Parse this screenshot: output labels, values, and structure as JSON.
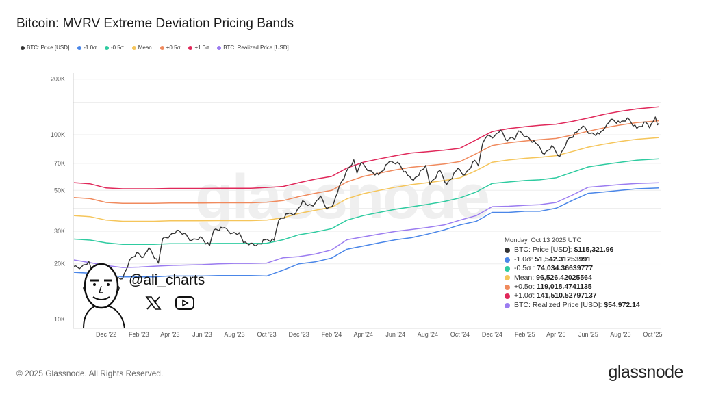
{
  "title": "Bitcoin: MVRV Extreme Deviation Pricing Bands",
  "legend": [
    {
      "label": "BTC: Price [USD]",
      "color": "#333333"
    },
    {
      "label": "-1.0σ",
      "color": "#4a86e8"
    },
    {
      "label": "-0.5σ",
      "color": "#2ecba0"
    },
    {
      "label": "Mean",
      "color": "#f5c55a"
    },
    {
      "label": "+0.5σ",
      "color": "#f08a5d"
    },
    {
      "label": "+1.0σ",
      "color": "#e0285a"
    },
    {
      "label": "BTC: Realized Price [USD]",
      "color": "#9b7cf0"
    }
  ],
  "tooltip": {
    "date": "Monday, Oct 13 2025 UTC",
    "rows": [
      {
        "label": "BTC: Price [USD]: ",
        "value": "$115,321.96",
        "color": "#333333"
      },
      {
        "label": "-1.0σ: ",
        "value": "51,542.31253991",
        "color": "#4a86e8"
      },
      {
        "label": "-0.5σ : ",
        "value": "74,034.36639777",
        "color": "#2ecba0"
      },
      {
        "label": "Mean: ",
        "value": "96,526.42025564",
        "color": "#f5c55a"
      },
      {
        "label": "+0.5σ: ",
        "value": "119,018.4741135",
        "color": "#f08a5d"
      },
      {
        "label": "+1.0σ: ",
        "value": "141,510.52797137",
        "color": "#e0285a"
      },
      {
        "label": "BTC: Realized Price [USD]: ",
        "value": "$54,972.14",
        "color": "#9b7cf0"
      }
    ]
  },
  "watermark": "glassnode",
  "author": {
    "handle": "@ali_charts",
    "icons": [
      "x-logo-icon",
      "youtube-icon"
    ]
  },
  "footer": "© 2025 Glassnode. All Rights Reserved.",
  "logo": "glassnode",
  "chart_data": {
    "type": "line",
    "title": "Bitcoin: MVRV Extreme Deviation Pricing Bands",
    "yscale": "log",
    "ylim": [
      10000,
      200000
    ],
    "yticks": [
      {
        "v": 200000,
        "label": "200K"
      },
      {
        "v": 100000,
        "label": "100K"
      },
      {
        "v": 70000,
        "label": "70K"
      },
      {
        "v": 50000,
        "label": "50K"
      },
      {
        "v": 30000,
        "label": "30K"
      },
      {
        "v": 20000,
        "label": "20K"
      },
      {
        "v": 10000,
        "label": "10K"
      }
    ],
    "xlim": [
      "2022-10-01",
      "2025-10-13"
    ],
    "xticks": [
      {
        "d": "2022-12-01",
        "label": "Dec '22"
      },
      {
        "d": "2023-02-01",
        "label": "Feb '23"
      },
      {
        "d": "2023-04-01",
        "label": "Apr '23"
      },
      {
        "d": "2023-06-01",
        "label": "Jun '23"
      },
      {
        "d": "2023-08-01",
        "label": "Aug '23"
      },
      {
        "d": "2023-10-01",
        "label": "Oct '23"
      },
      {
        "d": "2023-12-01",
        "label": "Dec '23"
      },
      {
        "d": "2024-02-01",
        "label": "Feb '24"
      },
      {
        "d": "2024-04-01",
        "label": "Apr '24"
      },
      {
        "d": "2024-06-01",
        "label": "Jun '24"
      },
      {
        "d": "2024-08-01",
        "label": "Aug '24"
      },
      {
        "d": "2024-10-01",
        "label": "Oct '24"
      },
      {
        "d": "2024-12-01",
        "label": "Dec '24"
      },
      {
        "d": "2025-02-01",
        "label": "Feb '25"
      },
      {
        "d": "2025-04-01",
        "label": "Apr '25"
      },
      {
        "d": "2025-06-01",
        "label": "Jun '25"
      },
      {
        "d": "2025-08-01",
        "label": "Aug '25"
      },
      {
        "d": "2025-10-01",
        "label": "Oct '25"
      }
    ],
    "grid": true,
    "legend_position": "top-left",
    "band_dates": [
      "2022-10-01",
      "2022-11-01",
      "2022-12-01",
      "2023-01-01",
      "2023-02-01",
      "2023-03-01",
      "2023-04-01",
      "2023-05-01",
      "2023-06-01",
      "2023-07-01",
      "2023-08-01",
      "2023-09-01",
      "2023-10-01",
      "2023-11-01",
      "2023-12-01",
      "2024-01-01",
      "2024-02-01",
      "2024-03-01",
      "2024-04-01",
      "2024-05-01",
      "2024-06-01",
      "2024-07-01",
      "2024-08-01",
      "2024-09-01",
      "2024-10-01",
      "2024-11-01",
      "2024-12-01",
      "2025-01-01",
      "2025-02-01",
      "2025-03-01",
      "2025-04-01",
      "2025-05-01",
      "2025-06-01",
      "2025-07-01",
      "2025-08-01",
      "2025-09-01",
      "2025-10-13"
    ],
    "series": [
      {
        "name": "+1.0σ",
        "color": "#e0285a",
        "values": [
          55000,
          54200,
          51500,
          51000,
          51000,
          51000,
          51200,
          51200,
          51200,
          51300,
          51300,
          51300,
          51800,
          52500,
          55000,
          57500,
          59500,
          66000,
          71000,
          74000,
          77000,
          79700,
          81000,
          82500,
          84500,
          94000,
          104000,
          108000,
          110500,
          112500,
          114000,
          118000,
          123200,
          129000,
          134000,
          138000,
          141510.53
        ]
      },
      {
        "name": "+0.5σ",
        "color": "#f08a5d",
        "values": [
          45750,
          45100,
          43000,
          42500,
          42500,
          42500,
          42700,
          42700,
          42700,
          42800,
          42800,
          42800,
          43150,
          44000,
          46250,
          48250,
          50000,
          55500,
          59500,
          62000,
          64500,
          66700,
          68000,
          69500,
          71500,
          79000,
          87500,
          90500,
          92500,
          94000,
          95500,
          99500,
          104500,
          109000,
          113000,
          116250,
          119018.47
        ]
      },
      {
        "name": "Mean",
        "color": "#f5c55a",
        "values": [
          36500,
          36000,
          34500,
          34000,
          34000,
          34000,
          34200,
          34200,
          34200,
          34300,
          34300,
          34300,
          34500,
          35500,
          37500,
          39000,
          40500,
          45000,
          48000,
          50000,
          52000,
          53700,
          55000,
          56500,
          58500,
          64000,
          71000,
          73000,
          74500,
          75500,
          77000,
          81000,
          85700,
          89000,
          92000,
          94500,
          96526.42
        ]
      },
      {
        "name": "-0.5σ",
        "color": "#2ecba0",
        "values": [
          27250,
          26900,
          26000,
          25500,
          25500,
          25500,
          25700,
          25700,
          25700,
          25800,
          25800,
          25800,
          25850,
          27000,
          28750,
          29750,
          31000,
          34500,
          36500,
          38000,
          39500,
          40700,
          42000,
          43500,
          45500,
          49000,
          54500,
          55500,
          56500,
          57000,
          58500,
          62500,
          67000,
          69000,
          71000,
          72750,
          74034.37
        ]
      },
      {
        "name": "BTC: Realized Price [USD]",
        "color": "#9b7cf0",
        "values": [
          21000,
          20300,
          19600,
          19100,
          19200,
          19400,
          19600,
          19700,
          19800,
          20000,
          20100,
          20100,
          20200,
          21600,
          21900,
          22600,
          23800,
          27000,
          28000,
          29000,
          30000,
          30700,
          31500,
          32500,
          34500,
          36500,
          40800,
          41000,
          41500,
          41800,
          43000,
          47000,
          52000,
          52800,
          53800,
          54500,
          54972.14
        ]
      },
      {
        "name": "-1.0σ",
        "color": "#4a86e8",
        "values": [
          18000,
          17800,
          17500,
          17000,
          17000,
          17000,
          17200,
          17200,
          17200,
          17300,
          17300,
          17300,
          17200,
          18500,
          20000,
          20500,
          21500,
          24000,
          25000,
          26000,
          27000,
          27700,
          29000,
          30500,
          32500,
          34000,
          38000,
          38000,
          38500,
          38500,
          40000,
          44000,
          48200,
          49000,
          50000,
          51000,
          51542.31
        ]
      }
    ],
    "price": {
      "name": "BTC: Price [USD]",
      "color": "#333333",
      "points": [
        [
          "2022-10-01",
          19400
        ],
        [
          "2022-10-15",
          19200
        ],
        [
          "2022-10-29",
          20700
        ],
        [
          "2022-11-09",
          16500
        ],
        [
          "2022-11-20",
          16300
        ],
        [
          "2022-12-05",
          17100
        ],
        [
          "2022-12-20",
          16800
        ],
        [
          "2023-01-01",
          16600
        ],
        [
          "2023-01-14",
          20900
        ],
        [
          "2023-01-28",
          23000
        ],
        [
          "2023-02-10",
          21800
        ],
        [
          "2023-02-20",
          24500
        ],
        [
          "2023-03-10",
          20200
        ],
        [
          "2023-03-18",
          27400
        ],
        [
          "2023-04-01",
          28500
        ],
        [
          "2023-04-14",
          30400
        ],
        [
          "2023-04-28",
          29300
        ],
        [
          "2023-05-12",
          26800
        ],
        [
          "2023-05-28",
          28000
        ],
        [
          "2023-06-15",
          25100
        ],
        [
          "2023-06-23",
          30500
        ],
        [
          "2023-07-13",
          31400
        ],
        [
          "2023-07-28",
          29300
        ],
        [
          "2023-08-10",
          29500
        ],
        [
          "2023-08-18",
          26100
        ],
        [
          "2023-09-01",
          25900
        ],
        [
          "2023-09-11",
          25100
        ],
        [
          "2023-09-28",
          27000
        ],
        [
          "2023-10-15",
          26900
        ],
        [
          "2023-10-24",
          34500
        ],
        [
          "2023-11-10",
          37300
        ],
        [
          "2023-11-25",
          37700
        ],
        [
          "2023-12-08",
          43900
        ],
        [
          "2023-12-18",
          41400
        ],
        [
          "2023-12-31",
          42300
        ],
        [
          "2024-01-11",
          46600
        ],
        [
          "2024-01-23",
          39500
        ],
        [
          "2024-02-05",
          42600
        ],
        [
          "2024-02-15",
          52000
        ],
        [
          "2024-02-28",
          62500
        ],
        [
          "2024-03-14",
          73100
        ],
        [
          "2024-03-20",
          62000
        ],
        [
          "2024-03-28",
          70800
        ],
        [
          "2024-04-13",
          63800
        ],
        [
          "2024-04-30",
          60600
        ],
        [
          "2024-05-20",
          71400
        ],
        [
          "2024-06-05",
          71000
        ],
        [
          "2024-06-24",
          60300
        ],
        [
          "2024-07-05",
          56700
        ],
        [
          "2024-07-28",
          68200
        ],
        [
          "2024-08-05",
          53900
        ],
        [
          "2024-08-24",
          64200
        ],
        [
          "2024-09-06",
          53900
        ],
        [
          "2024-09-27",
          65800
        ],
        [
          "2024-10-10",
          60600
        ],
        [
          "2024-10-29",
          72700
        ],
        [
          "2024-11-05",
          67800
        ],
        [
          "2024-11-13",
          90000
        ],
        [
          "2024-11-22",
          98900
        ],
        [
          "2024-12-05",
          98000
        ],
        [
          "2024-12-17",
          106100
        ],
        [
          "2024-12-30",
          92800
        ],
        [
          "2025-01-07",
          96900
        ],
        [
          "2025-01-13",
          94500
        ],
        [
          "2025-01-20",
          105000
        ],
        [
          "2025-02-04",
          98000
        ],
        [
          "2025-02-25",
          88500
        ],
        [
          "2025-03-10",
          78600
        ],
        [
          "2025-03-24",
          87500
        ],
        [
          "2025-04-08",
          76300
        ],
        [
          "2025-04-22",
          93400
        ],
        [
          "2025-05-10",
          103000
        ],
        [
          "2025-05-22",
          111600
        ],
        [
          "2025-06-05",
          101600
        ],
        [
          "2025-06-22",
          101000
        ],
        [
          "2025-07-03",
          109500
        ],
        [
          "2025-07-14",
          121500
        ],
        [
          "2025-07-31",
          115800
        ],
        [
          "2025-08-14",
          123300
        ],
        [
          "2025-09-01",
          108200
        ],
        [
          "2025-09-18",
          117100
        ],
        [
          "2025-09-25",
          109000
        ],
        [
          "2025-10-06",
          124800
        ],
        [
          "2025-10-10",
          113200
        ],
        [
          "2025-10-13",
          115321.96
        ]
      ]
    }
  }
}
